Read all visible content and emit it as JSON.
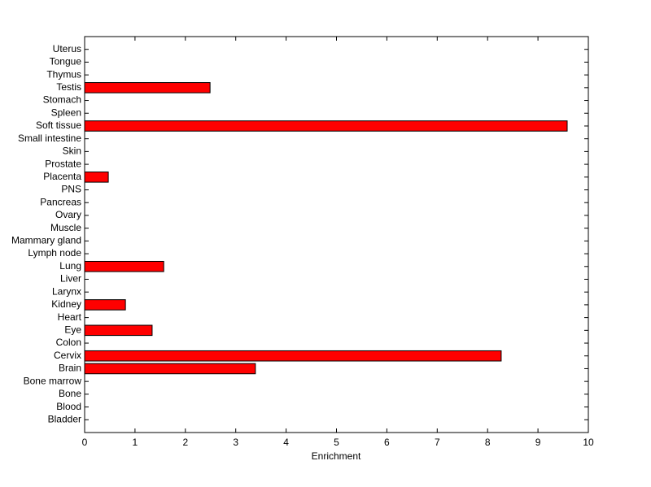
{
  "chart_data": {
    "type": "barh",
    "x_label": "Enrichment",
    "categories": [
      "Bladder",
      "Blood",
      "Bone",
      "Bone marrow",
      "Brain",
      "Cervix",
      "Colon",
      "Eye",
      "Heart",
      "Kidney",
      "Larynx",
      "Liver",
      "Lung",
      "Lymph node",
      "Mammary gland",
      "Muscle",
      "Ovary",
      "Pancreas",
      "PNS",
      "Placenta",
      "Prostate",
      "Skin",
      "Small intestine",
      "Soft tissue",
      "Spleen",
      "Stomach",
      "Testis",
      "Thymus",
      "Tongue",
      "Uterus"
    ],
    "values": [
      0,
      0,
      0,
      0,
      3.39,
      8.27,
      0,
      1.34,
      0,
      0.81,
      0,
      0,
      1.57,
      0,
      0,
      0,
      0,
      0,
      0,
      0.47,
      0,
      0,
      0,
      9.58,
      0,
      0,
      2.49,
      0,
      0,
      0
    ],
    "color": "#ff0000",
    "xlim": [
      0,
      10
    ],
    "xticks": [
      0,
      1,
      2,
      3,
      4,
      5,
      6,
      7,
      8,
      9,
      10
    ]
  }
}
